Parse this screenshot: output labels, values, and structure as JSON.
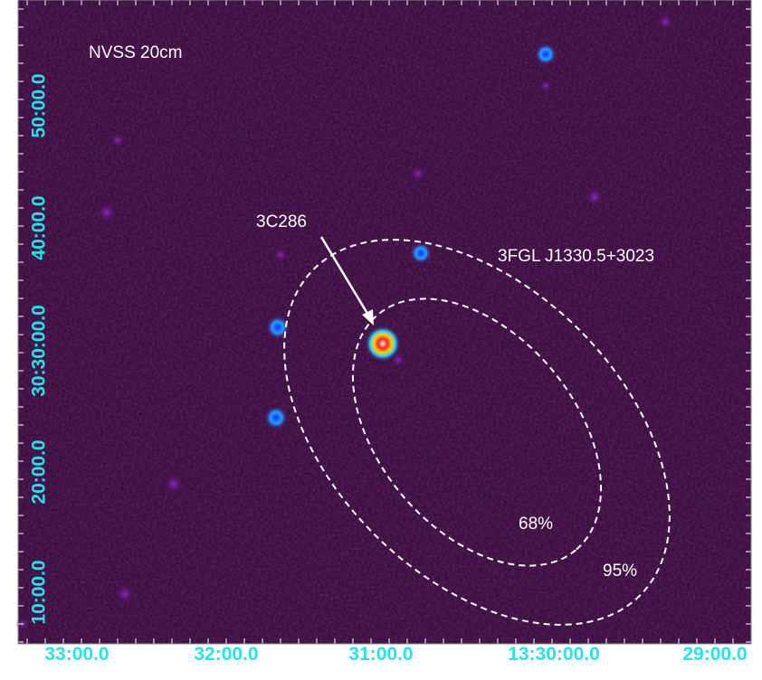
{
  "image": {
    "band_label": "NVSS 20cm",
    "source_label": "3C286",
    "region_label": "3FGL J1330.5+3023",
    "contours": [
      "68%",
      "95%"
    ],
    "y_axis_labels": [
      "50:00.0",
      "40:00.0",
      "30:30:00.0",
      "20:00.0",
      "10:00.0"
    ],
    "x_axis_labels": [
      "33:00.0",
      "32:00.0",
      "31:00.0",
      "13:30:00.0",
      "29:00.0"
    ]
  }
}
